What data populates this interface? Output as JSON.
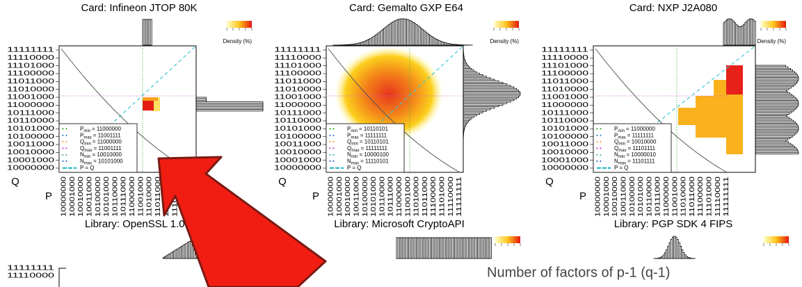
{
  "panels": [
    {
      "title": "Card: Infineon JTOP 80K",
      "legend": [
        {
          "sym": "P",
          "sub": "min",
          "text": "= 11000000"
        },
        {
          "sym": "P",
          "sub": "max",
          "text": "= 11001111"
        },
        {
          "sym": "Q",
          "sub": "min",
          "text": "= 11000000"
        },
        {
          "sym": "Q",
          "sub": "max",
          "text": "= 11001111"
        },
        {
          "sym": "N",
          "sub": "min",
          "text": "= 10010000"
        },
        {
          "sym": "N",
          "sub": "max",
          "text": "= 10101000"
        },
        {
          "text": "P = Q"
        }
      ]
    },
    {
      "title": "Card: Gemalto GXP E64",
      "legend": [
        {
          "sym": "P",
          "sub": "min",
          "text": "= 10110101"
        },
        {
          "sym": "P",
          "sub": "max",
          "text": "= 11111111"
        },
        {
          "sym": "Q",
          "sub": "min",
          "text": "= 10110101"
        },
        {
          "sym": "Q",
          "sub": "max",
          "text": "= 11111111"
        },
        {
          "sym": "N",
          "sub": "min",
          "text": "= 10000100"
        },
        {
          "sym": "N",
          "sub": "max",
          "text": "= 11110101"
        },
        {
          "text": "P = Q"
        }
      ]
    },
    {
      "title": "Card: NXP J2A080",
      "legend": [
        {
          "sym": "P",
          "sub": "min",
          "text": "= 11000000"
        },
        {
          "sym": "P",
          "sub": "max",
          "text": "= 11111111"
        },
        {
          "sym": "Q",
          "sub": "min",
          "text": "= 10010000"
        },
        {
          "sym": "Q",
          "sub": "max",
          "text": "= 11101111"
        },
        {
          "sym": "N",
          "sub": "min",
          "text": "= 10000010"
        },
        {
          "sym": "N",
          "sub": "max",
          "text": "= 11101111"
        },
        {
          "text": "P = Q"
        }
      ]
    }
  ],
  "density_label": "Density (%)",
  "axis": {
    "q": "Q",
    "p": "P",
    "ticks": [
      "11111111",
      "11110000",
      "11101000",
      "11100000",
      "11011000",
      "11010000",
      "11001000",
      "11000000",
      "10111000",
      "10110000",
      "10101000",
      "10100000",
      "10011000",
      "10010000",
      "10001000",
      "10000000"
    ]
  },
  "library_titles": [
    "Library: OpenSSL 1.0.2",
    "Library: Microsoft CryptoAPI",
    "Library: PGP SDK 4 FIPS"
  ],
  "caption": "Number of factors of p-1 (q-1)"
}
